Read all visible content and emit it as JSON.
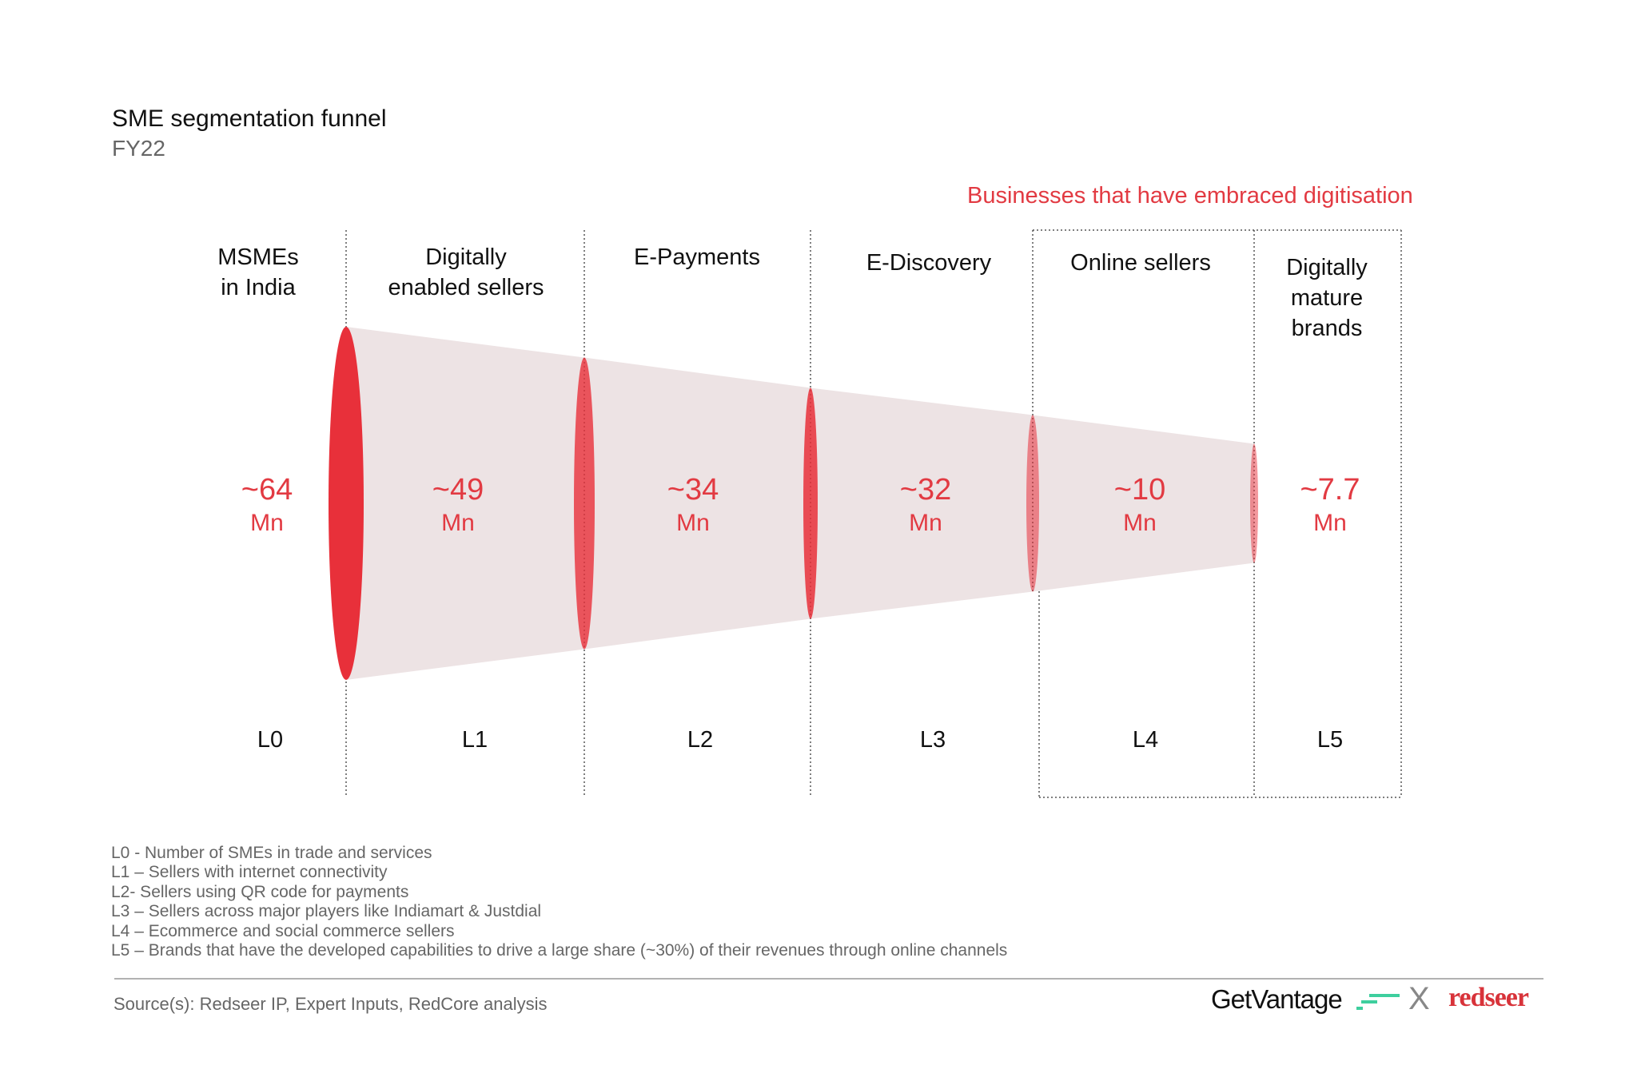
{
  "chart_data": {
    "type": "funnel",
    "title": "SME segmentation funnel",
    "subtitle": "FY22",
    "annotation": "Businesses that have embraced digitisation",
    "stages": [
      {
        "level": "L0",
        "label": "MSMEs\nin India",
        "value_text": "~64",
        "unit": "Mn",
        "value": 64
      },
      {
        "level": "L1",
        "label": "Digitally\nenabled sellers",
        "value_text": "~49",
        "unit": "Mn",
        "value": 49
      },
      {
        "level": "L2",
        "label": "E-Payments",
        "value_text": "~34",
        "unit": "Mn",
        "value": 34
      },
      {
        "level": "L3",
        "label": "E-Discovery",
        "value_text": "~32",
        "unit": "Mn",
        "value": 32
      },
      {
        "level": "L4",
        "label": "Online sellers",
        "value_text": "~10",
        "unit": "Mn",
        "value": 10
      },
      {
        "level": "L5",
        "label": "Digitally\nmature\nbrands",
        "value_text": "~7.7",
        "unit": "Mn",
        "value": 7.7
      }
    ],
    "colors": {
      "accent": "#e8303a",
      "funnel_fill": "#ede3e4",
      "text_red": "#e23a42"
    }
  },
  "notes": [
    "L0 -  Number of SMEs in trade and services",
    "L1 – Sellers with internet connectivity",
    "L2- Sellers using QR code for payments",
    "L3 – Sellers across major players like Indiamart & Justdial",
    "L4 – Ecommerce and social commerce sellers",
    "L5 – Brands that have the developed capabilities to drive a large share (~30%) of their revenues through online channels"
  ],
  "source": "Source(s): Redseer IP, Expert Inputs, RedCore analysis",
  "logos": {
    "left": "GetVantage",
    "separator": "X",
    "right": "redseer"
  }
}
